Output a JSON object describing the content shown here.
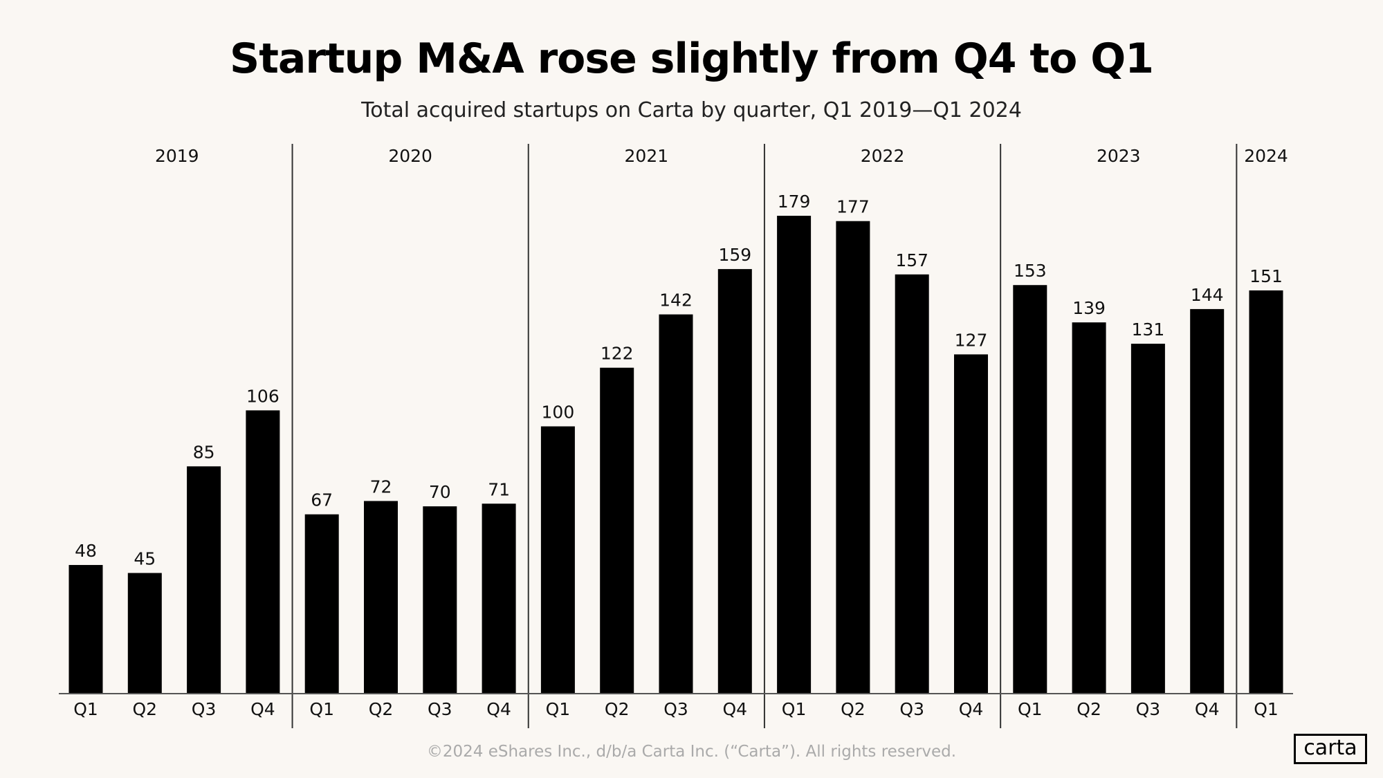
{
  "chart_data": {
    "type": "bar",
    "title": "Startup M&A rose slightly from Q4 to Q1",
    "subtitle": "Total acquired startups on Carta by quarter, Q1 2019—Q1 2024",
    "groups": [
      {
        "year": "2019",
        "categories": [
          "Q1",
          "Q2",
          "Q3",
          "Q4"
        ],
        "values": [
          48,
          45,
          85,
          106
        ]
      },
      {
        "year": "2020",
        "categories": [
          "Q1",
          "Q2",
          "Q3",
          "Q4"
        ],
        "values": [
          67,
          72,
          70,
          71
        ]
      },
      {
        "year": "2021",
        "categories": [
          "Q1",
          "Q2",
          "Q3",
          "Q4"
        ],
        "values": [
          100,
          122,
          142,
          159
        ]
      },
      {
        "year": "2022",
        "categories": [
          "Q1",
          "Q2",
          "Q3",
          "Q4"
        ],
        "values": [
          179,
          177,
          157,
          127
        ]
      },
      {
        "year": "2023",
        "categories": [
          "Q1",
          "Q2",
          "Q3",
          "Q4"
        ],
        "values": [
          153,
          139,
          131,
          144
        ]
      },
      {
        "year": "2024",
        "categories": [
          "Q1"
        ],
        "values": [
          151
        ]
      }
    ],
    "ylim": [
      0,
      179
    ],
    "grid": false,
    "bar_color": "#000000",
    "data_labels": true
  },
  "footer": "©2024 eShares Inc., d/b/a Carta Inc. (“Carta”). All rights reserved.",
  "logo": "carta"
}
